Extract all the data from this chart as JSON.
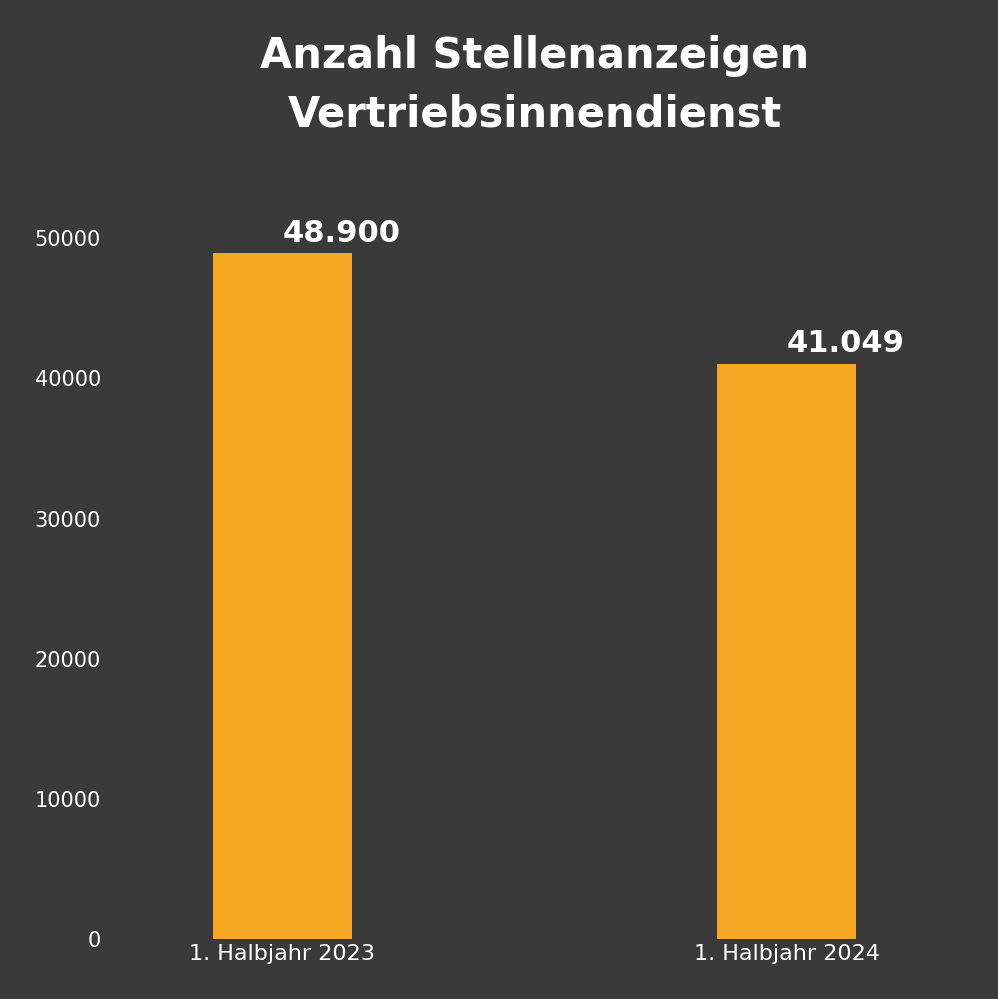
{
  "title": "Anzahl Stellenanzeigen\nVertriebsinnendienst",
  "categories": [
    "1. Halbjahr 2023",
    "1. Halbjahr 2024"
  ],
  "values": [
    48900,
    41049
  ],
  "value_labels": [
    "48.900",
    "41.049"
  ],
  "bar_color": "#f5a623",
  "background_color": "#3a3a3a",
  "text_color": "#ffffff",
  "title_fontsize": 30,
  "label_fontsize": 16,
  "tick_fontsize": 15,
  "bar_label_fontsize": 22,
  "ylim": [
    0,
    55000
  ],
  "yticks": [
    0,
    10000,
    20000,
    30000,
    40000,
    50000
  ],
  "bar_width": 0.55,
  "x_positions": [
    1,
    3
  ]
}
